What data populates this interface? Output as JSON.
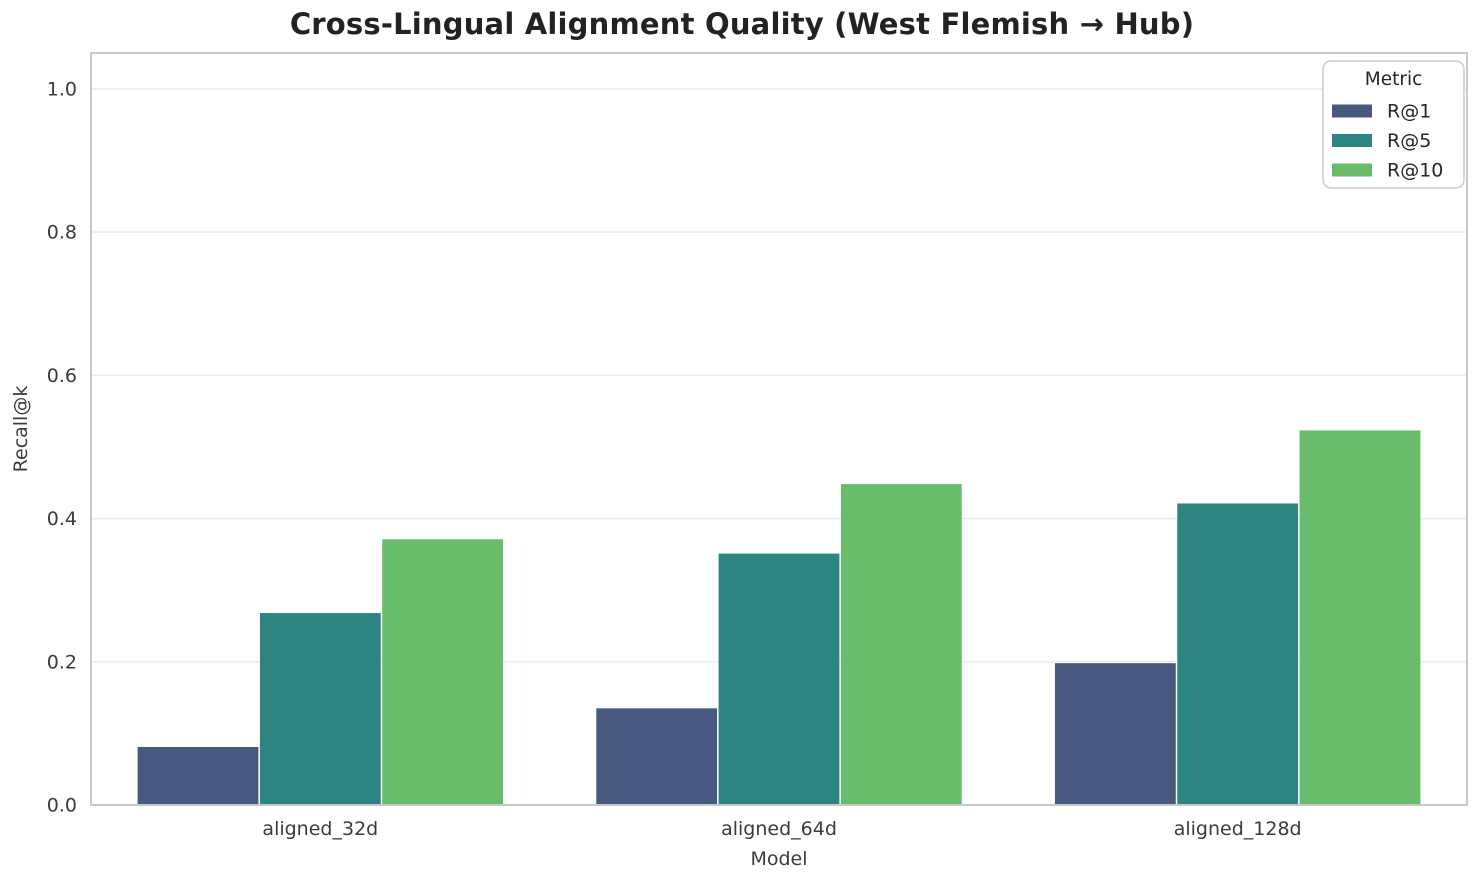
{
  "chart_data": {
    "type": "bar",
    "title": "Cross-Lingual Alignment Quality (West Flemish → Hub)",
    "xlabel": "Model",
    "ylabel": "Recall@k",
    "categories": [
      "aligned_32d",
      "aligned_64d",
      "aligned_128d"
    ],
    "series": [
      {
        "name": "R@1",
        "color": "#47597e",
        "values": [
          0.081,
          0.135,
          0.198
        ]
      },
      {
        "name": "R@5",
        "color": "#2e8480",
        "values": [
          0.268,
          0.351,
          0.421
        ]
      },
      {
        "name": "R@10",
        "color": "#68bc6b",
        "values": [
          0.371,
          0.448,
          0.523
        ]
      }
    ],
    "ylim": [
      0,
      1.05
    ],
    "yticks": [
      "0.0",
      "0.2",
      "0.4",
      "0.6",
      "0.8",
      "1.0"
    ],
    "grid": "horizontal",
    "legend": {
      "title": "Metric",
      "position": "upper-right"
    },
    "styles": {
      "grid_color": "#ececec",
      "spine_color": "#c9c9c9",
      "tick_label_color": "#3b3b3b",
      "title_color": "#222222",
      "legend_border_color": "#cccccc",
      "legend_text_color": "#262626"
    }
  }
}
